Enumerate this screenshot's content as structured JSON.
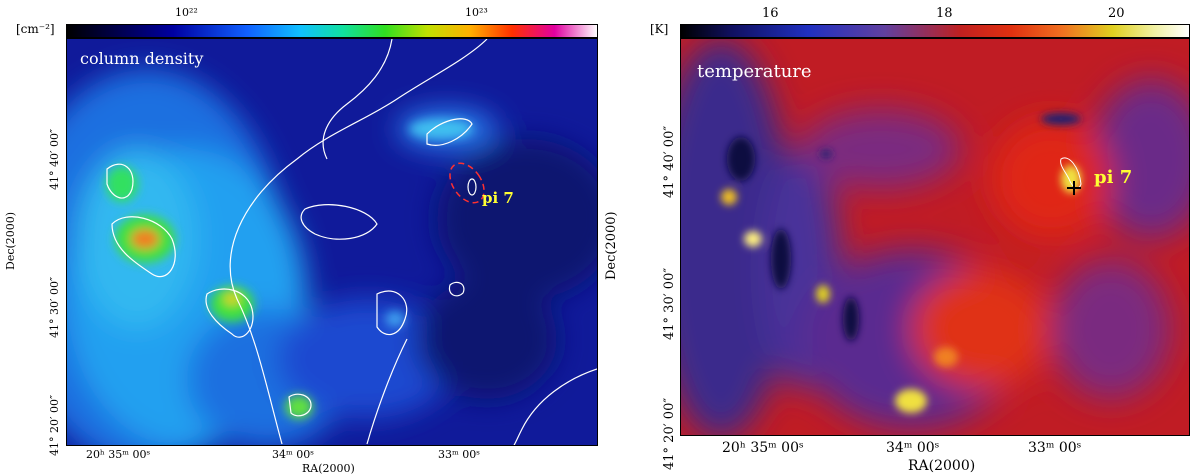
{
  "left_panel": {
    "colorbar_unit": "[cm⁻²]",
    "colorbar_ticks": [
      "10²²",
      "10²³"
    ],
    "map_title": "column density",
    "source_label": "pi 7",
    "x_ticks": [
      "20ʰ 35ᵐ 00ˢ",
      "34ᵐ 00ˢ",
      "33ᵐ 00ˢ"
    ],
    "y_ticks": [
      "41° 20′ 00″",
      "41° 30′ 00″",
      "41° 40′ 00″"
    ],
    "x_title": "RA(2000)",
    "y_title": "Dec(2000)"
  },
  "right_panel": {
    "colorbar_unit": "[K]",
    "colorbar_ticks": [
      "16",
      "18",
      "20"
    ],
    "map_title": "temperature",
    "source_label": "pi 7",
    "x_ticks": [
      "20ʰ 35ᵐ 00ˢ",
      "34ᵐ 00ˢ",
      "33ᵐ 00ˢ"
    ],
    "y_ticks": [
      "41° 20′ 00″",
      "41° 30′ 00″",
      "41° 40′ 00″"
    ],
    "x_title": "RA(2000)",
    "y_title": "Dec(2000)"
  },
  "colors": {
    "low_density": "#1a1a8c",
    "high_density": "#e0303a",
    "warm": "#c81e1e",
    "cool": "#1e1e8c",
    "label": "#ffff33"
  }
}
